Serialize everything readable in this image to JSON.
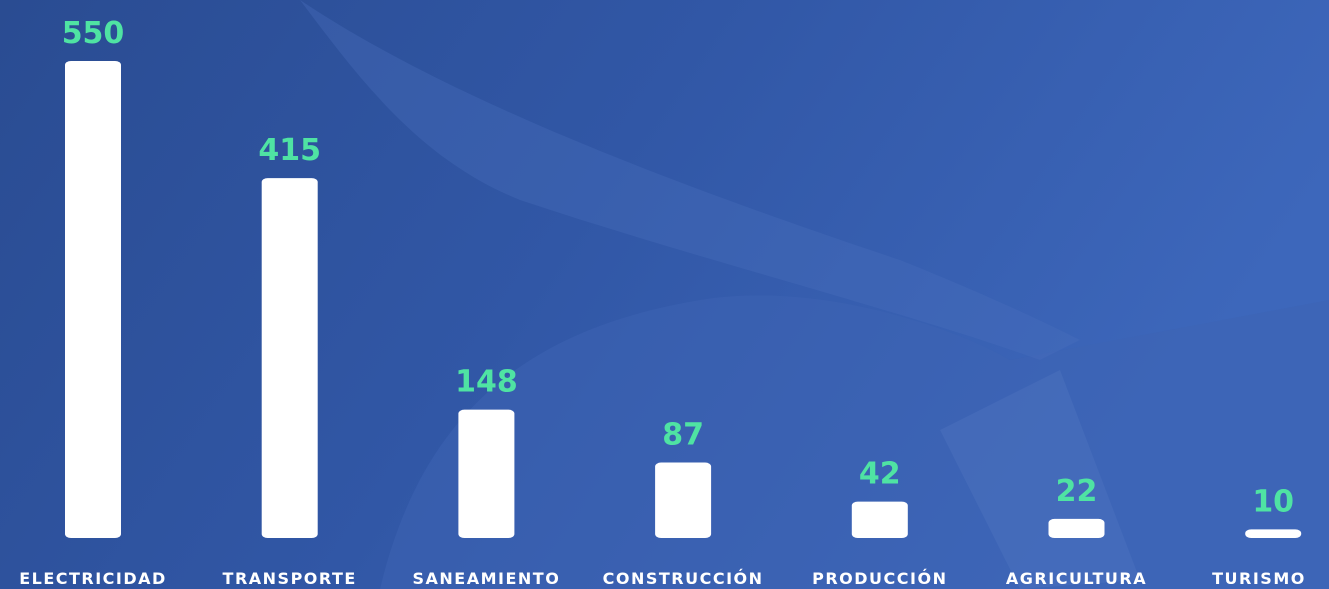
{
  "chart_data": {
    "type": "bar",
    "categories": [
      "ELECTRICIDAD",
      "TRANSPORTE",
      "SANEAMIENTO",
      "CONSTRUCCIÓN",
      "PRODUCCIÓN",
      "AGRICULTURA",
      "TURISMO"
    ],
    "values": [
      550,
      415,
      148,
      87,
      42,
      22,
      10
    ],
    "color": "#ffffff"
  }
}
